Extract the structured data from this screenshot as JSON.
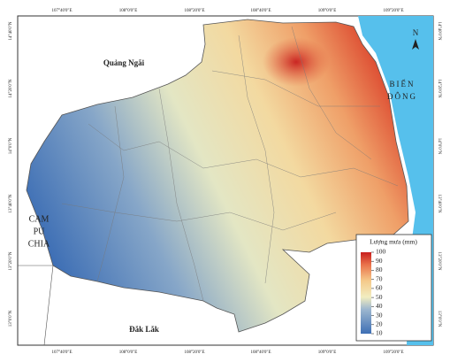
{
  "map": {
    "top_labels": [
      "107°40'0\"E",
      "108°0'0\"E",
      "108°20'0\"E",
      "108°40'0\"E",
      "109°0'0\"E",
      "109°20'0\"E"
    ],
    "bottom_labels": [
      "107°40'0\"E",
      "108°0'0\"E",
      "108°20'0\"E",
      "108°40'0\"E",
      "109°0'0\"E",
      "109°20'0\"E"
    ],
    "left_labels": [
      "14°40'0\"N",
      "14°20'0\"N",
      "14°0'0\"N",
      "13°40'0\"N",
      "13°20'0\"N",
      "13°0'0\"N"
    ],
    "right_labels": [
      "14°40'0\"N",
      "14°20'0\"N",
      "14°0'0\"N",
      "13°40'0\"N",
      "13°20'0\"N",
      "13°0'0\"N"
    ],
    "compass": "N",
    "quang_ngai": "Quảng Ngãi",
    "bien_dong": [
      "BIỂN",
      "ĐÔNG"
    ],
    "campuchia": [
      "CAM",
      "PU",
      "CHIA"
    ],
    "dak_lak": "Đắk Lắk"
  },
  "legend": {
    "title": "Lượng mưa (mm)",
    "ticks": [
      100,
      90,
      80,
      70,
      60,
      50,
      40,
      30,
      20,
      10
    ]
  }
}
